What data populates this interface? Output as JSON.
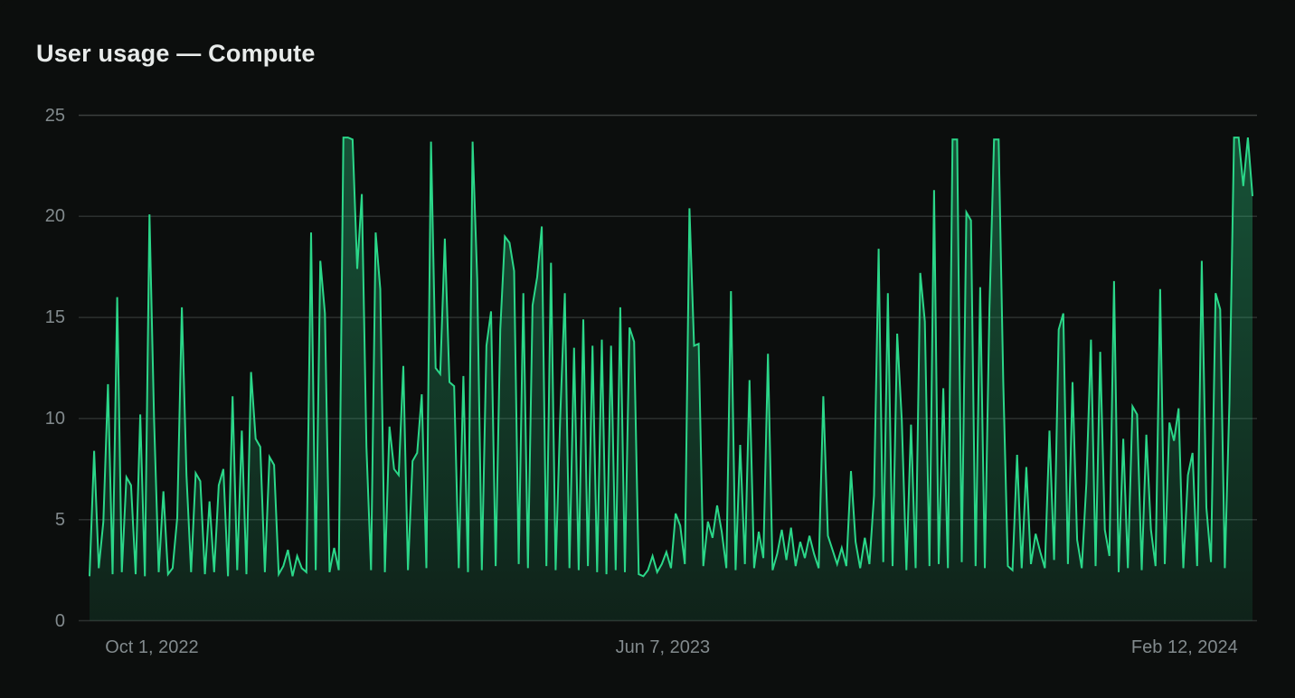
{
  "card": {
    "title": "User usage — Compute"
  },
  "chart_data": {
    "type": "area",
    "title": "User usage — Compute",
    "xlabel": "",
    "ylabel": "",
    "ylim": [
      0,
      25
    ],
    "grid": true,
    "legend_position": "none",
    "yticks": [
      {
        "value": 25,
        "label": "25"
      },
      {
        "value": 20,
        "label": "20"
      },
      {
        "value": 15,
        "label": "15"
      },
      {
        "value": 10,
        "label": "10"
      },
      {
        "value": 5,
        "label": "5"
      },
      {
        "value": 0,
        "label": "0"
      }
    ],
    "xticks": [
      {
        "label": "Oct 1, 2022",
        "pos": 0.0621
      },
      {
        "label": "Jun 7, 2023",
        "pos": 0.4957
      },
      {
        "label": "Feb 12, 2024",
        "pos": 0.9385
      }
    ],
    "colors": {
      "background": "#0c0e0d",
      "title_text": "#e8ebea",
      "axis_text": "#828a8d",
      "grid": "#2c302f",
      "grid_top": "#3b3f3e",
      "line": "#2bd789",
      "area_top": "rgba(43,215,137,0.34)",
      "area_bottom": "rgba(43,215,137,0.10)"
    },
    "values": [
      2.2,
      8.4,
      2.6,
      4.9,
      11.7,
      2.3,
      16.0,
      2.4,
      7.1,
      6.7,
      2.3,
      10.2,
      2.2,
      20.1,
      9.9,
      2.4,
      6.4,
      2.3,
      2.6,
      5.1,
      15.5,
      7.2,
      2.4,
      7.3,
      6.9,
      2.3,
      5.9,
      2.4,
      6.7,
      7.5,
      2.2,
      11.1,
      2.5,
      9.4,
      2.3,
      12.3,
      9.0,
      8.6,
      2.4,
      8.1,
      7.7,
      2.3,
      2.7,
      3.5,
      2.2,
      3.2,
      2.6,
      2.4,
      19.2,
      2.5,
      17.8,
      15.2,
      2.4,
      3.6,
      2.5,
      23.9,
      23.9,
      23.8,
      17.4,
      21.1,
      8.6,
      2.5,
      19.2,
      16.4,
      2.4,
      9.6,
      7.5,
      7.2,
      12.6,
      2.5,
      7.9,
      8.3,
      11.2,
      2.6,
      23.7,
      12.5,
      12.2,
      18.9,
      11.8,
      11.6,
      2.6,
      12.1,
      2.4,
      23.7,
      16.9,
      2.5,
      13.6,
      15.3,
      2.7,
      14.4,
      19.0,
      18.7,
      17.3,
      2.8,
      16.2,
      2.6,
      15.6,
      17.0,
      19.5,
      2.7,
      17.7,
      2.5,
      10.1,
      16.2,
      2.6,
      13.5,
      2.5,
      14.9,
      2.7,
      13.6,
      2.4,
      13.9,
      2.3,
      13.6,
      2.5,
      15.5,
      2.4,
      14.5,
      13.8,
      2.3,
      2.2,
      2.5,
      3.2,
      2.4,
      2.8,
      3.4,
      2.6,
      5.3,
      4.7,
      2.8,
      20.4,
      13.6,
      13.7,
      2.7,
      4.9,
      4.1,
      5.7,
      4.4,
      2.6,
      16.3,
      2.5,
      8.7,
      2.8,
      11.9,
      2.6,
      4.4,
      3.1,
      13.2,
      2.5,
      3.3,
      4.5,
      3.0,
      4.6,
      2.7,
      3.9,
      3.1,
      4.2,
      3.3,
      2.6,
      11.1,
      4.2,
      3.5,
      2.8,
      3.6,
      2.7,
      7.4,
      3.9,
      2.6,
      4.1,
      2.8,
      6.2,
      18.4,
      2.9,
      16.2,
      2.7,
      14.2,
      9.9,
      2.5,
      9.7,
      2.6,
      17.2,
      14.8,
      2.7,
      21.3,
      2.8,
      11.5,
      2.6,
      23.8,
      23.8,
      2.9,
      20.2,
      19.8,
      2.7,
      16.5,
      2.6,
      15.4,
      23.8,
      23.8,
      11.8,
      2.7,
      2.5,
      8.2,
      2.6,
      7.6,
      2.8,
      4.3,
      3.4,
      2.6,
      9.4,
      3.0,
      14.4,
      15.2,
      2.8,
      11.8,
      4.0,
      2.6,
      6.8,
      13.9,
      2.7,
      13.3,
      4.5,
      3.2,
      16.8,
      2.4,
      9.0,
      2.6,
      10.6,
      10.2,
      2.5,
      9.2,
      4.5,
      2.7,
      16.4,
      2.8,
      9.8,
      8.9,
      10.5,
      2.6,
      7.2,
      8.3,
      2.7,
      17.8,
      5.6,
      2.9,
      16.2,
      15.4,
      2.6,
      10.8,
      23.9,
      23.9,
      21.5,
      23.9,
      21.0
    ]
  }
}
